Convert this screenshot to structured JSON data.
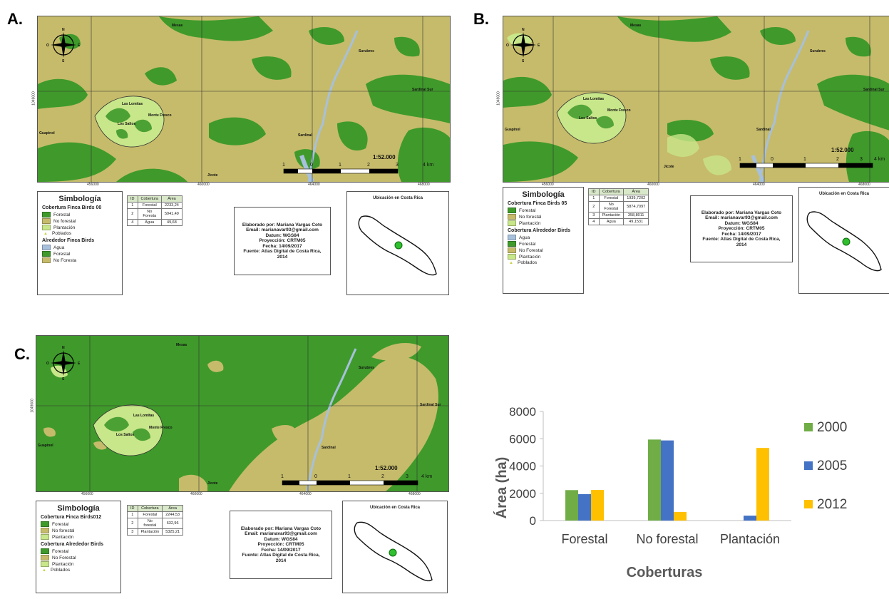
{
  "panels": [
    {
      "letter": "A.",
      "towns": [
        "Mesas",
        "Surubres",
        "Sardinal Sur",
        "Las Lomitas",
        "Monte Fresco",
        "Los Saltos",
        "Guapinol",
        "Sardinal",
        "Jicote"
      ],
      "coords": [
        "456000",
        "460000",
        "464000",
        "468000"
      ],
      "ycoord": "1049000",
      "scale": {
        "title": "1:52.000",
        "ticks": [
          "1",
          "0",
          "1",
          "2",
          "3",
          "4 km"
        ]
      },
      "legend": {
        "title": "Simbología",
        "finca_heading": "Cobertura Finca Birds",
        "year_tag": "00",
        "finca_items": [
          {
            "label": "Forestal",
            "color": "#3f9a2b"
          },
          {
            "label": "No forestal",
            "color": "#c6bb6b"
          },
          {
            "label": "Plantación",
            "color": "#c8e68a"
          },
          {
            "label": "Poblados",
            "symbol": "triangle"
          }
        ],
        "around_heading": "Alrededor Finca Birds",
        "around_items": [
          {
            "label": "Agua",
            "color": "#a7c0dc"
          },
          {
            "label": "Forestal",
            "color": "#3f9a2b"
          },
          {
            "label": "No Foresta",
            "color": "#c6bb6b"
          }
        ]
      },
      "table": {
        "headers": [
          "ID",
          "Cobertura",
          "Área"
        ],
        "rows": [
          [
            "1",
            "Forestal",
            "2233,24"
          ],
          [
            "2",
            "No Foresta",
            "5941,49"
          ],
          [
            "4",
            "Agua",
            "49,68"
          ]
        ]
      },
      "info": [
        "Elaborado por: Mariana Vargas Coto",
        "Email: marianavar93@gmail.com",
        "Datum:  WGS84",
        "Proyección: CRTM05",
        "Fecha: 14/09/2017",
        "Fuente: Atlas Digital de Costa Rica,",
        "2014"
      ],
      "loc_title": "Ubicación en Costa Rica"
    },
    {
      "letter": "B.",
      "towns": [
        "Mesas",
        "Surubres",
        "Sardinal Sur",
        "Las Lomitas",
        "Monte Fresco",
        "Los Saltos",
        "Guapinol",
        "Sardinal",
        "Jicote"
      ],
      "coords": [
        "456000",
        "460000",
        "464000",
        "468000"
      ],
      "ycoord": "1049000",
      "scale": {
        "title": "1:52.000",
        "ticks": [
          "1",
          "0",
          "1",
          "2",
          "3",
          "4 km"
        ]
      },
      "legend": {
        "title": "Simbología",
        "finca_heading": "Cobertura Finca Birds",
        "year_tag": "05",
        "finca_items": [
          {
            "label": "Forestal",
            "color": "#3f9a2b"
          },
          {
            "label": "No forestal",
            "color": "#c6bb6b"
          },
          {
            "label": "Plantación",
            "color": "#c8e68a"
          }
        ],
        "around_heading": "Cobertura Alrededor Birds",
        "around_items": [
          {
            "label": "Agua",
            "color": "#a7c0dc"
          },
          {
            "label": "Forestal",
            "color": "#3f9a2b"
          },
          {
            "label": "No Forestal",
            "color": "#c6bb6b"
          },
          {
            "label": "Plantación",
            "color": "#c8e68a"
          },
          {
            "label": "Poblados",
            "symbol": "triangle"
          }
        ]
      },
      "table": {
        "headers": [
          "ID",
          "Cobertura",
          "Área"
        ],
        "rows": [
          [
            "1",
            "Forestal",
            "1939,7202"
          ],
          [
            "2",
            "No Forestal",
            "5874,7097"
          ],
          [
            "3",
            "Plantación",
            "358,8011"
          ],
          [
            "4",
            "Agua",
            "49,1531"
          ]
        ]
      },
      "info": [
        "Elaborado por: Mariana Vargas Coto",
        "Email: marianavar93@gmail.com",
        "Datum:  WGS84",
        "Proyección: CRTM05",
        "Fecha: 14/09/2017",
        "Fuente: Atlas Digital de Costa Rica,",
        "2014"
      ],
      "loc_title": "Ubicación en Costa Rica"
    },
    {
      "letter": "C.",
      "towns": [
        "Mesas",
        "Surubres",
        "Sardinal Sur",
        "Las Lomitas",
        "Monte Fresco",
        "Los Saltos",
        "Guapinol",
        "Sardinal",
        "Jicote"
      ],
      "coords": [
        "456000",
        "460000",
        "464000",
        "468000"
      ],
      "ycoord": "1049000",
      "scale": {
        "title": "1:52.000",
        "ticks": [
          "1",
          "0",
          "1",
          "2",
          "3",
          "4 km"
        ]
      },
      "legend": {
        "title": "Simbología",
        "finca_heading": "Cobertura Finca Birds",
        "year_tag": "012",
        "finca_items": [
          {
            "label": "Forestal",
            "color": "#3f9a2b"
          },
          {
            "label": "No forestal",
            "color": "#c6bb6b"
          },
          {
            "label": "Plantación",
            "color": "#c8e68a"
          }
        ],
        "around_heading": "Cobertura Alrededor Birds",
        "around_items": [
          {
            "label": "Forestal",
            "color": "#3f9a2b"
          },
          {
            "label": "No Forestal",
            "color": "#c6bb6b"
          },
          {
            "label": "Plantación",
            "color": "#c8e68a"
          },
          {
            "label": "Poblados",
            "symbol": "triangle"
          }
        ]
      },
      "table": {
        "headers": [
          "ID",
          "Cobertura",
          "Área"
        ],
        "rows": [
          [
            "1",
            "Forestal",
            "2244,53"
          ],
          [
            "2",
            "No forestal",
            "632,96"
          ],
          [
            "3",
            "Plantación",
            "5325,21"
          ]
        ]
      },
      "info": [
        "Elaborado por: Mariana Vargas Coto",
        "Email: marianavar93@gmail.com",
        "Datum:  WGS84",
        "Proyección: CRTM05",
        "Fecha: 14/09/2017",
        "Fuente: Atlas Digital de Costa Rica,",
        "2014"
      ],
      "loc_title": "Ubicación en Costa Rica"
    }
  ],
  "colors": {
    "forest": "#3f9a2b",
    "nonforest": "#c6bb6b",
    "plantation": "#c8e68a",
    "water": "#a7c0dc"
  },
  "chart_data": {
    "type": "bar",
    "categories": [
      "Forestal",
      "No forestal",
      "Plantación"
    ],
    "series": [
      {
        "name": "2000",
        "color": "#70ad47",
        "values": [
          2233,
          5941,
          0
        ]
      },
      {
        "name": "2005",
        "color": "#4472c4",
        "values": [
          1940,
          5875,
          359
        ]
      },
      {
        "name": "2012",
        "color": "#ffc000",
        "values": [
          2245,
          633,
          5325
        ]
      }
    ],
    "xlabel": "Coberturas",
    "ylabel": "Área (ha)",
    "ylim": [
      0,
      8000
    ],
    "yticks": [
      "0",
      "2000",
      "4000",
      "6000",
      "8000"
    ],
    "legend_position": "right",
    "grid": false
  }
}
